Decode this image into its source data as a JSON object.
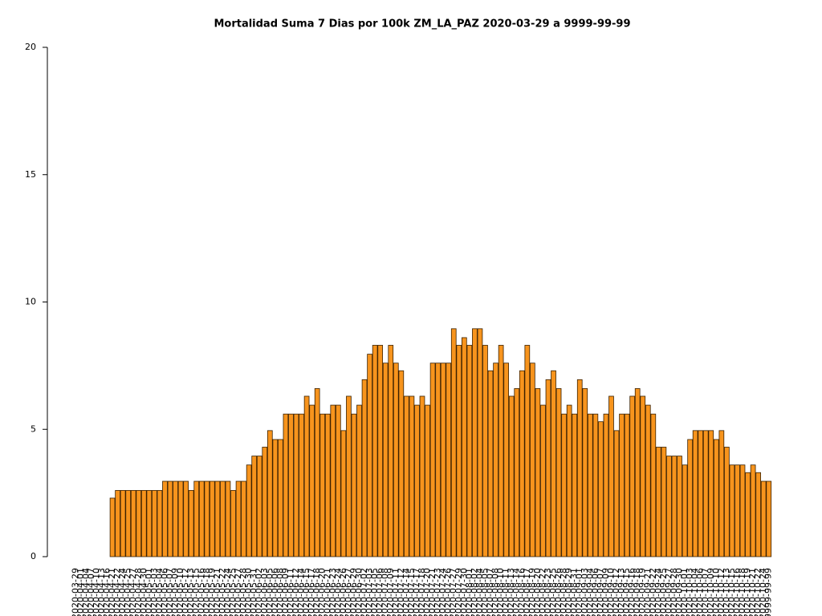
{
  "chart_data": {
    "type": "bar",
    "title": "Mortalidad Suma 7 Dias por 100k ZM_LA_PAZ 2020-03-29 a 9999-99-99",
    "categories": [
      "2020-03-29",
      "2020-04-01",
      "2020-04-04",
      "2020-04-07",
      "2020-04-10",
      "2020-04-13",
      "2020-04-16",
      "2020-04-21",
      "2020-04-22",
      "2020-04-24",
      "2020-04-25",
      "2020-04-27",
      "2020-04-28",
      "2020-04-30",
      "2020-05-01",
      "2020-05-03",
      "2020-05-04",
      "2020-05-06",
      "2020-05-07",
      "2020-05-09",
      "2020-05-10",
      "2020-05-12",
      "2020-05-13",
      "2020-05-15",
      "2020-05-16",
      "2020-05-18",
      "2020-05-19",
      "2020-05-21",
      "2020-05-22",
      "2020-05-24",
      "2020-05-25",
      "2020-05-27",
      "2020-05-28",
      "2020-05-30",
      "2020-05-31",
      "2020-06-02",
      "2020-06-03",
      "2020-06-05",
      "2020-06-06",
      "2020-06-08",
      "2020-06-09",
      "2020-06-11",
      "2020-06-12",
      "2020-06-14",
      "2020-06-15",
      "2020-06-17",
      "2020-06-18",
      "2020-06-20",
      "2020-06-21",
      "2020-06-23",
      "2020-06-24",
      "2020-06-26",
      "2020-06-27",
      "2020-06-29",
      "2020-06-30",
      "2020-07-02",
      "2020-07-03",
      "2020-07-05",
      "2020-07-06",
      "2020-07-08",
      "2020-07-09",
      "2020-07-11",
      "2020-07-12",
      "2020-07-14",
      "2020-07-15",
      "2020-07-17",
      "2020-07-18",
      "2020-07-20",
      "2020-07-21",
      "2020-07-23",
      "2020-07-24",
      "2020-07-26",
      "2020-07-27",
      "2020-07-29",
      "2020-07-30",
      "2020-08-01",
      "2020-08-02",
      "2020-08-04",
      "2020-08-05",
      "2020-08-07",
      "2020-08-08",
      "2020-08-10",
      "2020-08-11",
      "2020-08-13",
      "2020-08-14",
      "2020-08-16",
      "2020-08-17",
      "2020-08-19",
      "2020-08-20",
      "2020-08-22",
      "2020-08-23",
      "2020-08-25",
      "2020-08-26",
      "2020-08-28",
      "2020-08-29",
      "2020-08-31",
      "2020-09-01",
      "2020-09-03",
      "2020-09-04",
      "2020-09-06",
      "2020-09-07",
      "2020-09-09",
      "2020-09-10",
      "2020-09-12",
      "2020-09-13",
      "2020-09-15",
      "2020-09-16",
      "2020-09-18",
      "2020-09-19",
      "2020-09-21",
      "2020-09-22",
      "2020-09-24",
      "2020-09-25",
      "2020-09-27",
      "2020-09-28",
      "2020-09-30",
      "2020-10-01",
      "2020-10-03",
      "2020-10-04",
      "2020-10-06",
      "2020-10-07",
      "2020-10-09",
      "2020-10-10",
      "2020-10-12",
      "2020-10-13",
      "2020-10-15",
      "2020-10-16",
      "2020-10-18",
      "2020-10-19",
      "2020-10-21",
      "2020-10-22",
      "2020-10-24",
      "9999-99-99"
    ],
    "values": [
      0,
      0,
      0,
      0,
      0,
      0,
      0,
      2.3,
      2.6,
      2.6,
      2.6,
      2.6,
      2.6,
      2.6,
      2.6,
      2.6,
      2.6,
      2.96,
      2.96,
      2.96,
      2.96,
      2.96,
      2.6,
      2.96,
      2.96,
      2.96,
      2.96,
      2.96,
      2.96,
      2.96,
      2.6,
      2.96,
      2.96,
      3.6,
      3.95,
      3.95,
      4.3,
      4.95,
      4.6,
      4.6,
      5.6,
      5.6,
      5.6,
      5.6,
      6.3,
      5.95,
      6.6,
      5.6,
      5.6,
      5.95,
      5.95,
      4.95,
      6.3,
      5.6,
      5.95,
      6.95,
      7.95,
      8.3,
      8.3,
      7.6,
      8.3,
      7.6,
      7.3,
      6.3,
      6.3,
      5.95,
      6.3,
      5.95,
      7.6,
      7.6,
      7.6,
      7.6,
      8.95,
      8.3,
      8.6,
      8.3,
      8.95,
      8.95,
      8.3,
      7.3,
      7.6,
      8.3,
      7.6,
      6.3,
      6.6,
      7.3,
      8.3,
      7.6,
      6.6,
      5.95,
      6.95,
      7.3,
      6.6,
      5.6,
      5.95,
      5.6,
      6.95,
      6.6,
      5.6,
      5.6,
      5.3,
      5.6,
      6.3,
      4.95,
      5.6,
      5.6,
      6.3,
      6.6,
      6.3,
      5.95,
      5.6,
      4.3,
      4.3,
      3.95,
      3.95,
      3.95,
      3.6,
      4.6,
      4.95,
      4.95,
      4.95,
      4.95,
      4.6,
      4.95,
      4.3,
      3.6,
      3.6,
      3.6,
      3.3,
      3.6,
      3.3,
      2.96,
      2.96
    ],
    "color": "#f7941d",
    "ylim": [
      0,
      20
    ],
    "yticks": [
      0,
      5,
      10,
      15,
      20
    ],
    "grid": false
  }
}
